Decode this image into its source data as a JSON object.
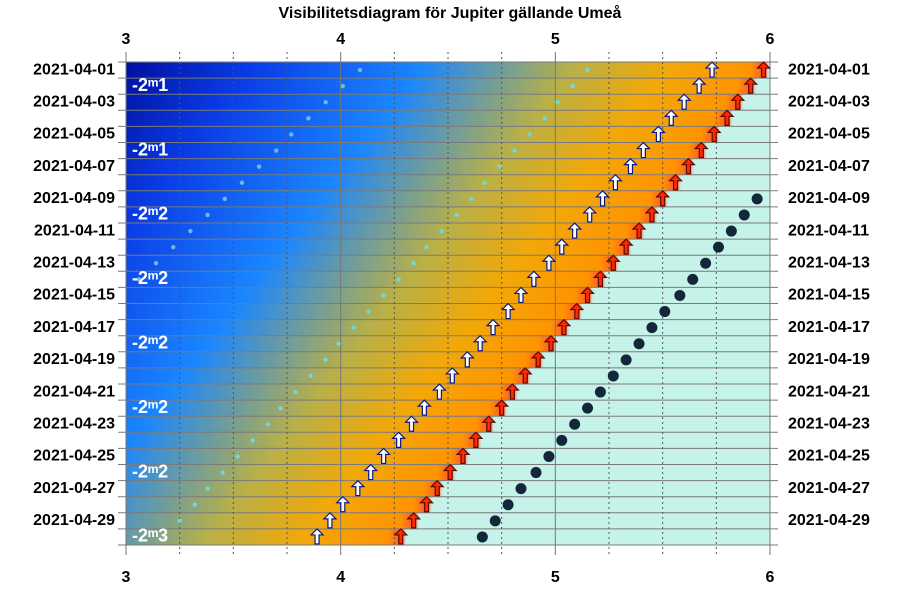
{
  "chart_data": {
    "type": "scatter",
    "title": "Visibilitetsdiagram för Jupiter gällande Umeå",
    "categories": [
      "2021-04-01",
      null,
      "2021-04-03",
      null,
      "2021-04-05",
      null,
      "2021-04-07",
      null,
      "2021-04-09",
      null,
      "2021-04-11",
      null,
      "2021-04-13",
      null,
      "2021-04-15",
      null,
      "2021-04-17",
      null,
      "2021-04-19",
      null,
      "2021-04-21",
      null,
      "2021-04-23",
      null,
      "2021-04-25",
      null,
      "2021-04-27",
      null,
      "2021-04-29",
      null
    ],
    "magnitudes": [
      null,
      "-2ᵐ1",
      null,
      null,
      null,
      "-2ᵐ1",
      null,
      null,
      null,
      "-2ᵐ2",
      null,
      null,
      null,
      "-2ᵐ2",
      null,
      null,
      null,
      "-2ᵐ2",
      null,
      null,
      null,
      "-2ᵐ2",
      null,
      null,
      null,
      "-2ᵐ2",
      null,
      null,
      null,
      "-2ᵐ3"
    ],
    "xlim": [
      3,
      6
    ],
    "xticks": [
      3,
      4,
      5,
      6
    ],
    "minor_xticks": [
      3.25,
      3.5,
      3.75,
      4.25,
      4.5,
      4.75,
      5.25,
      5.5,
      5.75
    ],
    "series": [
      {
        "marker": "small-dot",
        "color": "#6fb8e8",
        "values": [
          4.09,
          4.01,
          3.93,
          3.85,
          3.77,
          3.7,
          3.62,
          3.54,
          3.46,
          3.38,
          3.3,
          3.22,
          3.14,
          3.06,
          null,
          null,
          null,
          null,
          null,
          null,
          null,
          null,
          null,
          null,
          null,
          null,
          null,
          null,
          null,
          null
        ]
      },
      {
        "marker": "small-dot",
        "color": "#6fd8d8",
        "values": [
          5.15,
          5.08,
          5.01,
          4.95,
          4.88,
          4.81,
          4.74,
          4.67,
          4.61,
          4.54,
          4.47,
          4.4,
          4.34,
          4.27,
          4.2,
          4.13,
          4.06,
          3.99,
          3.93,
          3.86,
          3.79,
          3.72,
          3.66,
          3.59,
          3.52,
          3.45,
          3.38,
          3.32,
          3.25,
          3.18
        ]
      },
      {
        "marker": "arrow",
        "color": "#ffffff",
        "values": [
          5.73,
          5.67,
          5.6,
          5.54,
          5.48,
          5.41,
          5.35,
          5.28,
          5.22,
          5.16,
          5.09,
          5.03,
          4.97,
          4.9,
          4.84,
          4.78,
          4.71,
          4.65,
          4.59,
          4.52,
          4.46,
          4.39,
          4.33,
          4.27,
          4.2,
          4.14,
          4.08,
          4.01,
          3.95,
          3.89
        ]
      },
      {
        "marker": "arrow",
        "color": "#ff2a00",
        "values": [
          5.97,
          5.91,
          5.85,
          5.8,
          5.74,
          5.68,
          5.62,
          5.56,
          5.5,
          5.45,
          5.39,
          5.33,
          5.27,
          5.21,
          5.15,
          5.1,
          5.04,
          4.98,
          4.92,
          4.86,
          4.8,
          4.75,
          4.69,
          4.63,
          4.57,
          4.51,
          4.45,
          4.4,
          4.34,
          4.28
        ]
      },
      {
        "marker": "dot",
        "color": "#14263a",
        "values": [
          null,
          null,
          null,
          null,
          null,
          null,
          null,
          null,
          5.94,
          5.88,
          5.82,
          5.76,
          5.7,
          5.64,
          5.58,
          5.51,
          5.45,
          5.39,
          5.33,
          5.27,
          5.21,
          5.15,
          5.09,
          5.03,
          4.97,
          4.91,
          4.84,
          4.78,
          4.72,
          4.66
        ]
      }
    ]
  }
}
